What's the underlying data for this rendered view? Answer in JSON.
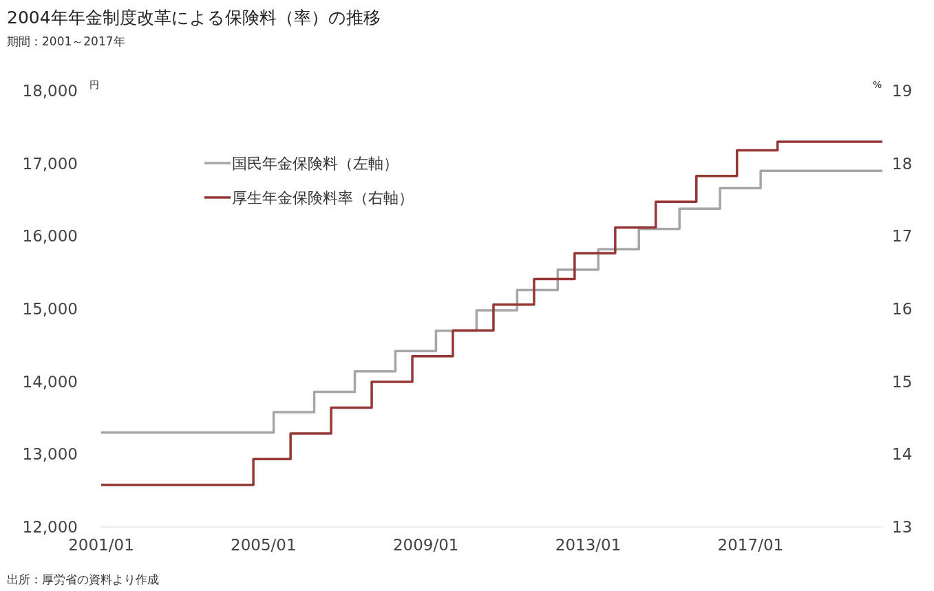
{
  "chart_data": {
    "type": "step",
    "title": "2004年年金制度改革による保険料（率）の推移",
    "subtitle": "期間：2001～2017年",
    "ylabel": "円",
    "y2label": "%",
    "annotations": [
      "出所：厚労省の資料より作成"
    ],
    "xlim": [
      "2001-01",
      "2020-04"
    ],
    "xticks": [
      {
        "value": "2001-01",
        "label": "2001/01"
      },
      {
        "value": "2005-01",
        "label": "2005/01"
      },
      {
        "value": "2009-01",
        "label": "2009/01"
      },
      {
        "value": "2013-01",
        "label": "2013/01"
      },
      {
        "value": "2017-01",
        "label": "2017/01"
      }
    ],
    "ylim": [
      12000,
      18000
    ],
    "yticks": [
      {
        "value": 12000,
        "label": "12,000"
      },
      {
        "value": 13000,
        "label": "13,000"
      },
      {
        "value": 14000,
        "label": "14,000"
      },
      {
        "value": 15000,
        "label": "15,000"
      },
      {
        "value": 16000,
        "label": "16,000"
      },
      {
        "value": 17000,
        "label": "17,000"
      },
      {
        "value": 18000,
        "label": "18,000"
      }
    ],
    "y2lim": [
      13,
      19
    ],
    "y2ticks": [
      13,
      14,
      15,
      16,
      17,
      18,
      19
    ],
    "legend": "top left",
    "series": [
      {
        "name": "国民年金保険料（左軸）",
        "color": "#a6a6a6",
        "x": [
          "2001-01",
          "2005-04",
          "2006-04",
          "2007-04",
          "2008-04",
          "2009-04",
          "2010-04",
          "2011-04",
          "2012-04",
          "2013-04",
          "2014-04",
          "2015-04",
          "2016-04",
          "2017-04",
          "2020-04"
        ],
        "values": [
          13300,
          13580,
          13860,
          14140,
          14420,
          14700,
          14980,
          15260,
          15540,
          15820,
          16100,
          16380,
          16660,
          16900,
          16900
        ]
      },
      {
        "name": "厚生年金保険料率（右軸）",
        "color": "#953735",
        "axis": "y2",
        "x": [
          "2001-01",
          "2004-10",
          "2005-09",
          "2006-09",
          "2007-09",
          "2008-09",
          "2009-09",
          "2010-09",
          "2011-09",
          "2012-09",
          "2013-09",
          "2014-09",
          "2015-09",
          "2016-09",
          "2017-09",
          "2020-04"
        ],
        "values": [
          13.58,
          13.934,
          14.288,
          14.642,
          14.996,
          15.35,
          15.704,
          16.058,
          16.412,
          16.766,
          17.12,
          17.474,
          17.828,
          18.182,
          18.3,
          18.3
        ]
      }
    ]
  }
}
